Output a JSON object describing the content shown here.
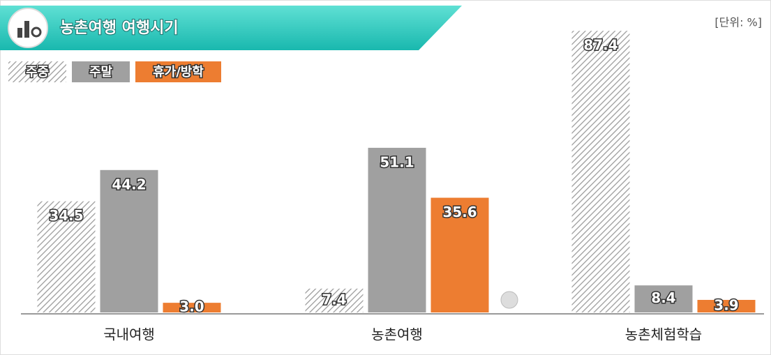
{
  "chart_data": {
    "type": "bar",
    "title": "농촌여행 여행시기",
    "unit": "[단위: %]",
    "categories": [
      "국내여행",
      "농촌여행",
      "농촌체험학습"
    ],
    "series": [
      {
        "name": "주중",
        "color": "hatched-gray",
        "values": [
          34.5,
          7.4,
          87.4
        ]
      },
      {
        "name": "주말",
        "color": "#a0a0a0",
        "values": [
          44.2,
          51.1,
          8.4
        ]
      },
      {
        "name": "휴가/방학",
        "color": "#ed7d31",
        "values": [
          3.0,
          35.6,
          3.9
        ],
        "value_labels": [
          "3.0",
          "35.6",
          "3.9"
        ]
      }
    ]
  }
}
